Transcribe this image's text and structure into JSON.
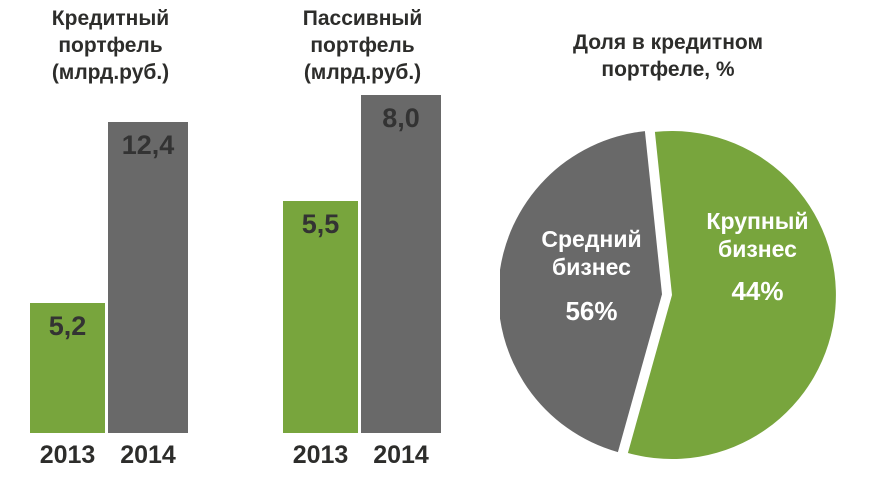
{
  "colors": {
    "green": "#78a53d",
    "gray": "#696969",
    "text": "#2d2d2b"
  },
  "chart_data": [
    {
      "type": "bar",
      "title": "Кредитный портфель (млрд.руб.)",
      "categories": [
        "2013",
        "2014"
      ],
      "values": [
        5.2,
        12.4
      ],
      "value_labels": [
        "5,2",
        "12,4"
      ],
      "colors": [
        "#78a53d",
        "#696969"
      ],
      "xlabel": "",
      "ylabel": "",
      "ylim": [
        0,
        12.4
      ],
      "grid": false,
      "legend": "none"
    },
    {
      "type": "bar",
      "title": "Пассивный портфель (млрд.руб.)",
      "categories": [
        "2013",
        "2014"
      ],
      "values": [
        5.5,
        8.0
      ],
      "value_labels": [
        "5,5",
        "8,0"
      ],
      "colors": [
        "#78a53d",
        "#696969"
      ],
      "xlabel": "",
      "ylabel": "",
      "ylim": [
        0,
        8.0
      ],
      "grid": false,
      "legend": "none"
    },
    {
      "type": "pie",
      "title": "Доля в кредитном портфеле, %",
      "start_angle_deg": -6,
      "slices": [
        {
          "label": "Средний бизнес",
          "pct": 56,
          "pct_label": "56%",
          "color": "#78a53d",
          "explode": 0
        },
        {
          "label": "Крупный бизнес",
          "pct": 44,
          "pct_label": "44%",
          "color": "#696969",
          "explode": 10
        }
      ],
      "legend": "none"
    }
  ]
}
